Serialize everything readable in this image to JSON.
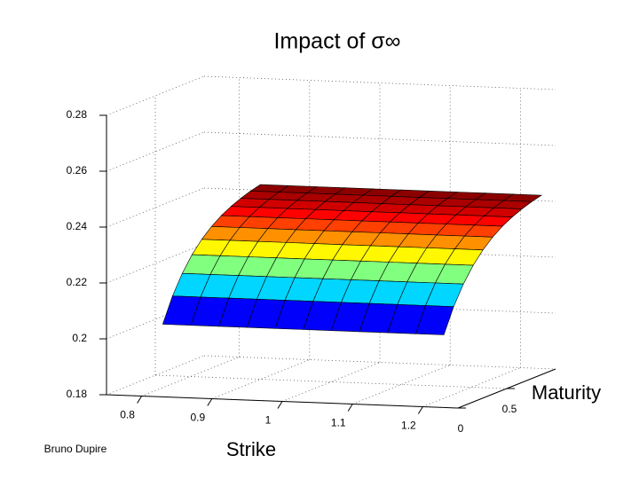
{
  "chart_data": {
    "type": "surface",
    "title": "Impact of σ∞",
    "xlabel": "Strike",
    "ylabel": "Maturity",
    "footer": "Bruno Dupire",
    "x": [
      0.83,
      0.87,
      0.91,
      0.95,
      0.99,
      1.03,
      1.07,
      1.11,
      1.15,
      1.19,
      1.23
    ],
    "y": [
      0,
      0.1,
      0.2,
      0.3,
      0.4,
      0.5,
      0.6,
      0.7,
      0.8,
      0.9,
      1
    ],
    "z": [
      [
        0.206,
        0.206,
        0.206,
        0.206,
        0.206,
        0.206,
        0.206,
        0.206,
        0.206,
        0.206,
        0.206
      ],
      [
        0.2147,
        0.2147,
        0.2147,
        0.2147,
        0.2147,
        0.2147,
        0.2147,
        0.2147,
        0.2147,
        0.2147,
        0.2147
      ],
      [
        0.2214,
        0.2214,
        0.2214,
        0.2214,
        0.2214,
        0.2214,
        0.2214,
        0.2214,
        0.2214,
        0.2214,
        0.2214
      ],
      [
        0.2267,
        0.2267,
        0.2267,
        0.2267,
        0.2267,
        0.2267,
        0.2267,
        0.2267,
        0.2267,
        0.2267,
        0.2267
      ],
      [
        0.2308,
        0.2308,
        0.2308,
        0.2308,
        0.2308,
        0.2308,
        0.2308,
        0.2308,
        0.2308,
        0.2308,
        0.2308
      ],
      [
        0.234,
        0.234,
        0.234,
        0.234,
        0.234,
        0.234,
        0.234,
        0.234,
        0.234,
        0.234,
        0.234
      ],
      [
        0.2365,
        0.2365,
        0.2365,
        0.2365,
        0.2365,
        0.2365,
        0.2365,
        0.2365,
        0.2365,
        0.2365,
        0.2365
      ],
      [
        0.2384,
        0.2384,
        0.2384,
        0.2384,
        0.2384,
        0.2384,
        0.2384,
        0.2384,
        0.2384,
        0.2384,
        0.2384
      ],
      [
        0.2399,
        0.2399,
        0.2399,
        0.2399,
        0.2399,
        0.2399,
        0.2399,
        0.2399,
        0.2399,
        0.2399,
        0.2399
      ],
      [
        0.2411,
        0.2411,
        0.2411,
        0.2411,
        0.2411,
        0.2411,
        0.2411,
        0.2411,
        0.2411,
        0.2411,
        0.2411
      ],
      [
        0.242,
        0.242,
        0.242,
        0.242,
        0.242,
        0.242,
        0.242,
        0.242,
        0.242,
        0.242,
        0.242
      ]
    ],
    "xlim": [
      0.75,
      1.25
    ],
    "ylim": [
      0,
      1
    ],
    "zlim": [
      0.18,
      0.28
    ],
    "xticks": [
      0.8,
      0.9,
      1,
      1.1,
      1.2
    ],
    "yticks": [
      0,
      0.5
    ],
    "zticks": [
      0.18,
      0.2,
      0.22,
      0.24,
      0.26,
      0.28
    ],
    "colormap": "jet",
    "grid": true
  }
}
